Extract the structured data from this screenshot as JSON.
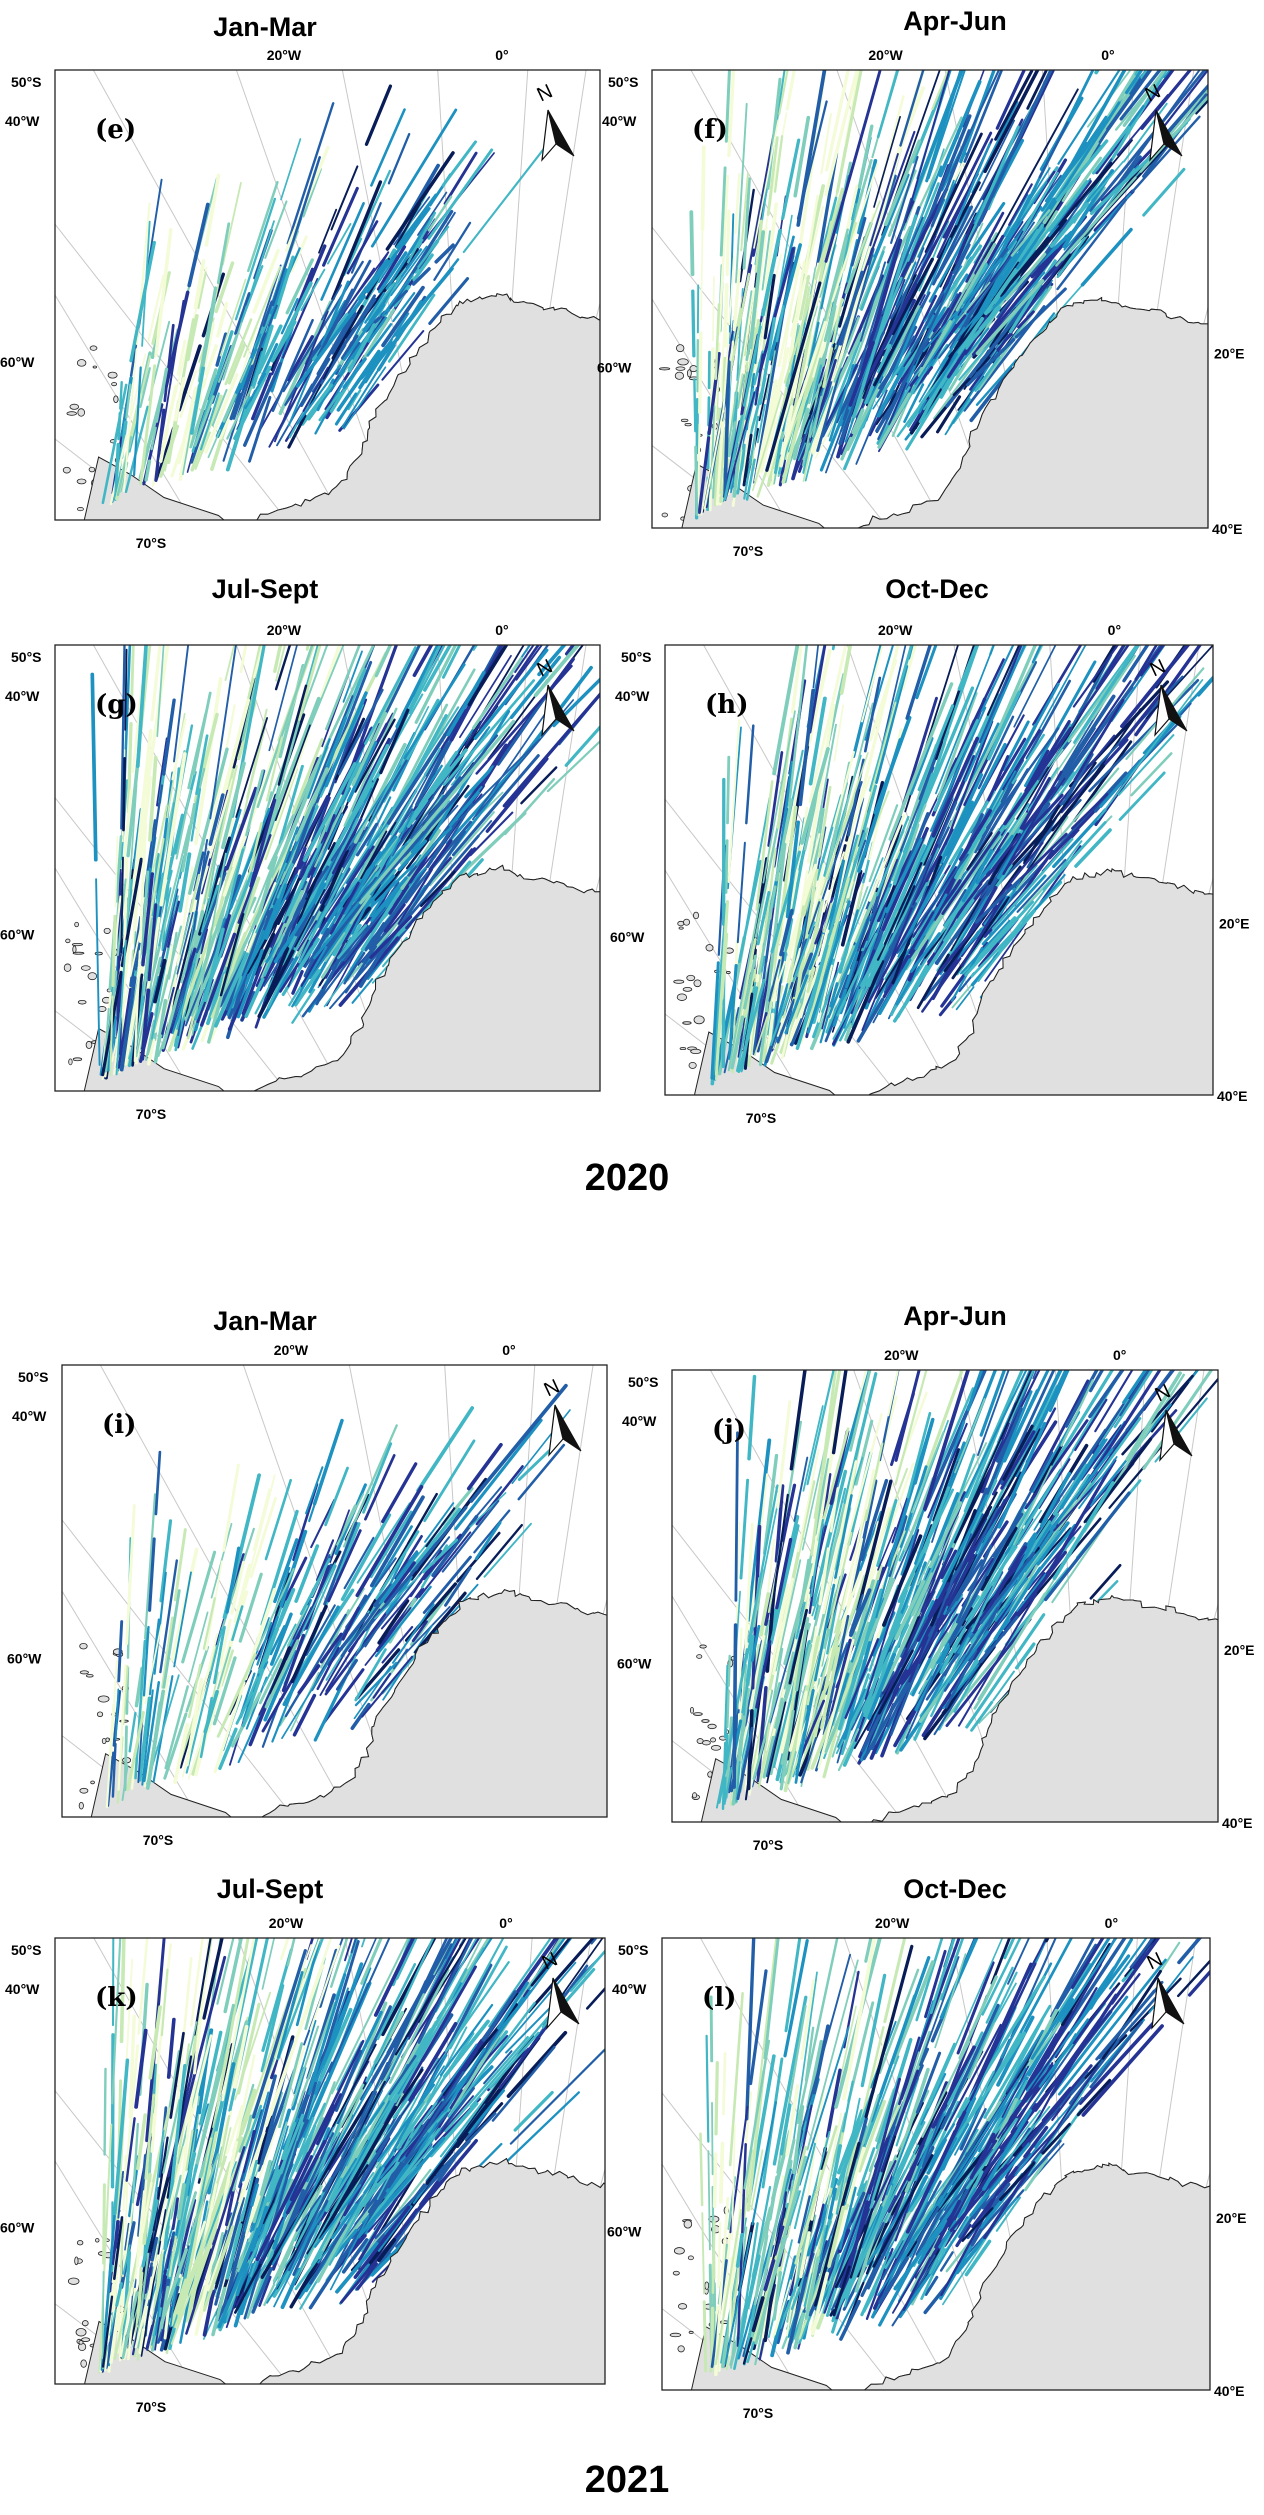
{
  "years": [
    "2020",
    "2021"
  ],
  "panels": [
    {
      "id": "e",
      "letter": "(e)",
      "title": "Jan-Mar",
      "density": 0.42,
      "labels": {
        "lat_top": "50°S",
        "lon_left_top": "40°W",
        "lon_20w": "20°W",
        "lon_0": "0°",
        "lat_bottom": "70°S",
        "lon_60w": "60°W",
        "lon_20e": "",
        "lon_40e": ""
      }
    },
    {
      "id": "f",
      "letter": "(f)",
      "title": "Apr-Jun",
      "density": 1.0,
      "labels": {
        "lat_top": "50°S",
        "lon_left_top": "40°W",
        "lon_20w": "20°W",
        "lon_0": "0°",
        "lat_bottom": "70°S",
        "lon_60w": "60°W",
        "lon_20e": "20°E",
        "lon_40e": "40°E"
      }
    },
    {
      "id": "g",
      "letter": "(g)",
      "title": "Jul-Sept",
      "density": 1.0,
      "labels": {
        "lat_top": "50°S",
        "lon_left_top": "40°W",
        "lon_20w": "20°W",
        "lon_0": "0°",
        "lat_bottom": "70°S",
        "lon_60w": "60°W",
        "lon_20e": "",
        "lon_40e": ""
      }
    },
    {
      "id": "h",
      "letter": "(h)",
      "title": "Oct-Dec",
      "density": 0.9,
      "labels": {
        "lat_top": "50°S",
        "lon_left_top": "40°W",
        "lon_20w": "20°W",
        "lon_0": "0°",
        "lat_bottom": "70°S",
        "lon_60w": "60°W",
        "lon_20e": "20°E",
        "lon_40e": "40°E"
      }
    },
    {
      "id": "i",
      "letter": "(i)",
      "title": "Jan-Mar",
      "density": 0.38,
      "labels": {
        "lat_top": "50°S",
        "lon_left_top": "40°W",
        "lon_20w": "20°W",
        "lon_0": "0°",
        "lat_bottom": "70°S",
        "lon_60w": "60°W",
        "lon_20e": "",
        "lon_40e": ""
      }
    },
    {
      "id": "j",
      "letter": "(j)",
      "title": "Apr-Jun",
      "density": 0.85,
      "labels": {
        "lat_top": "50°S",
        "lon_left_top": "40°W",
        "lon_20w": "20°W",
        "lon_0": "0°",
        "lat_bottom": "70°S",
        "lon_60w": "60°W",
        "lon_20e": "20°E",
        "lon_40e": "40°E"
      }
    },
    {
      "id": "k",
      "letter": "(k)",
      "title": "Jul-Sept",
      "density": 1.0,
      "labels": {
        "lat_top": "50°S",
        "lon_left_top": "40°W",
        "lon_20w": "20°W",
        "lon_0": "0°",
        "lat_bottom": "70°S",
        "lon_60w": "60°W",
        "lon_20e": "",
        "lon_40e": ""
      }
    },
    {
      "id": "l",
      "letter": "(l)",
      "title": "Oct-Dec",
      "density": 0.85,
      "labels": {
        "lat_top": "50°S",
        "lon_left_top": "40°W",
        "lon_20w": "20°W",
        "lon_0": "0°",
        "lat_bottom": "70°S",
        "lon_60w": "60°W",
        "lon_20e": "20°E",
        "lon_40e": "40°E"
      }
    }
  ],
  "north_arrow": "N",
  "colors": {
    "land": "#e0e0e0",
    "coast": "#222222",
    "graticule": "#c8c8c8",
    "track_ramp": [
      "#f3fbd7",
      "#c7e9b4",
      "#7fcdbb",
      "#41b6c4",
      "#1d91c0",
      "#225ea8",
      "#253494",
      "#081d58"
    ]
  },
  "icons": {
    "north_arrow": "north-arrow-icon"
  }
}
